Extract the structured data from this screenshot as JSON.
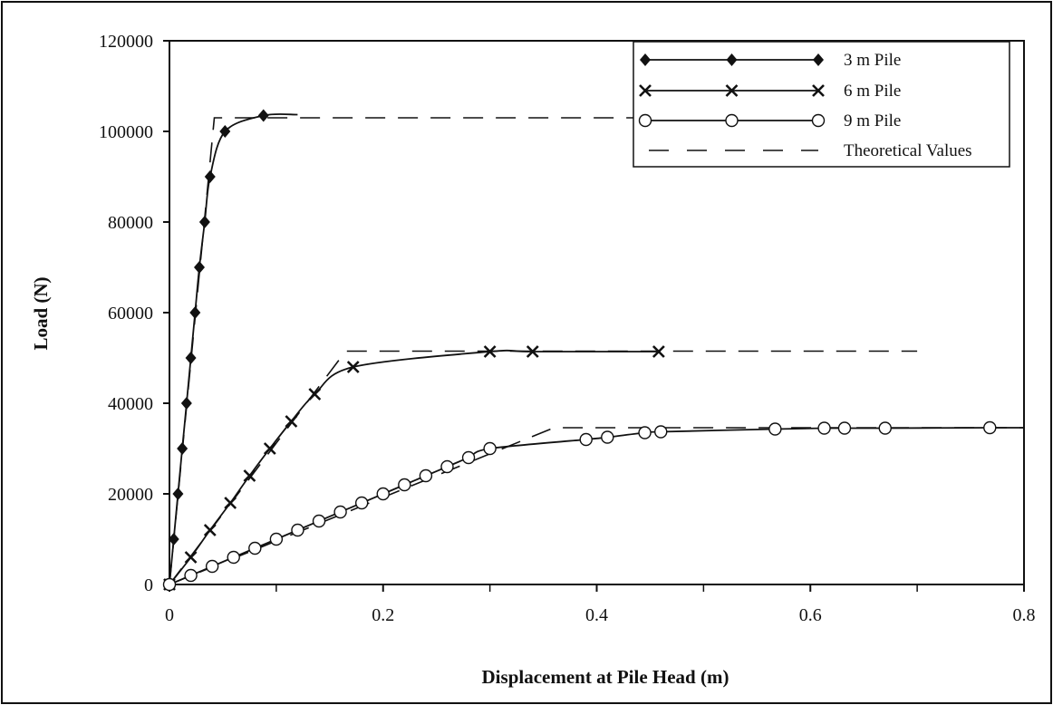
{
  "chart_data": {
    "type": "line",
    "title": "",
    "xlabel": "Displacement at Pile Head (m)",
    "ylabel": "Load (N)",
    "xlim": [
      0,
      0.8
    ],
    "ylim": [
      0,
      120000
    ],
    "xticks": [
      0,
      0.2,
      0.4,
      0.6,
      0.8
    ],
    "xtick_labels": [
      "0",
      "0.2",
      "0.4",
      "0.6",
      "0.8"
    ],
    "yticks": [
      0,
      20000,
      40000,
      60000,
      80000,
      100000,
      120000
    ],
    "ytick_labels": [
      "0",
      "20000",
      "40000",
      "60000",
      "80000",
      "100000",
      "120000"
    ],
    "grid": false,
    "legend_position": "top-right",
    "series": [
      {
        "name": "3 m Pile",
        "marker": "diamond",
        "style": "solid",
        "points": [
          [
            0,
            0
          ],
          [
            0.004,
            10000
          ],
          [
            0.008,
            20000
          ],
          [
            0.012,
            30000
          ],
          [
            0.016,
            40000
          ],
          [
            0.02,
            50000
          ],
          [
            0.024,
            60000
          ],
          [
            0.028,
            70000
          ],
          [
            0.033,
            80000
          ],
          [
            0.038,
            90000
          ],
          [
            0.052,
            100000
          ],
          [
            0.088,
            103500
          ]
        ],
        "curve_tail": [
          [
            0.12,
            103700
          ]
        ]
      },
      {
        "name": "6 m Pile",
        "marker": "x",
        "style": "solid",
        "points": [
          [
            0,
            0
          ],
          [
            0.02,
            6000
          ],
          [
            0.038,
            12000
          ],
          [
            0.057,
            18000
          ],
          [
            0.075,
            24000
          ],
          [
            0.094,
            30000
          ],
          [
            0.114,
            36000
          ],
          [
            0.136,
            42000
          ],
          [
            0.172,
            48000
          ],
          [
            0.3,
            51400
          ],
          [
            0.34,
            51400
          ],
          [
            0.458,
            51400
          ]
        ],
        "curve_tail": []
      },
      {
        "name": "9 m Pile",
        "marker": "circle",
        "style": "solid",
        "points": [
          [
            0,
            0
          ],
          [
            0.02,
            2000
          ],
          [
            0.04,
            4000
          ],
          [
            0.06,
            6000
          ],
          [
            0.08,
            8000
          ],
          [
            0.1,
            10000
          ],
          [
            0.12,
            12000
          ],
          [
            0.14,
            14000
          ],
          [
            0.16,
            16000
          ],
          [
            0.18,
            18000
          ],
          [
            0.2,
            20000
          ],
          [
            0.22,
            22000
          ],
          [
            0.24,
            24000
          ],
          [
            0.26,
            26000
          ],
          [
            0.28,
            28000
          ],
          [
            0.3,
            30000
          ],
          [
            0.39,
            32000
          ],
          [
            0.41,
            32500
          ],
          [
            0.445,
            33500
          ],
          [
            0.46,
            33700
          ],
          [
            0.567,
            34300
          ],
          [
            0.613,
            34500
          ],
          [
            0.632,
            34500
          ],
          [
            0.67,
            34500
          ],
          [
            0.768,
            34600
          ]
        ],
        "curve_tail": [
          [
            0.8,
            34600
          ]
        ]
      },
      {
        "name": "Theoretical Values",
        "marker": "none",
        "style": "dashed",
        "lines": [
          [
            [
              0,
              0
            ],
            [
              0.042,
              103000
            ],
            [
              0.5,
              103000
            ]
          ],
          [
            [
              0,
              0
            ],
            [
              0.165,
              51500
            ],
            [
              0.7,
              51500
            ]
          ],
          [
            [
              0,
              0
            ],
            [
              0.36,
              34600
            ],
            [
              0.8,
              34600
            ]
          ]
        ]
      }
    ]
  }
}
